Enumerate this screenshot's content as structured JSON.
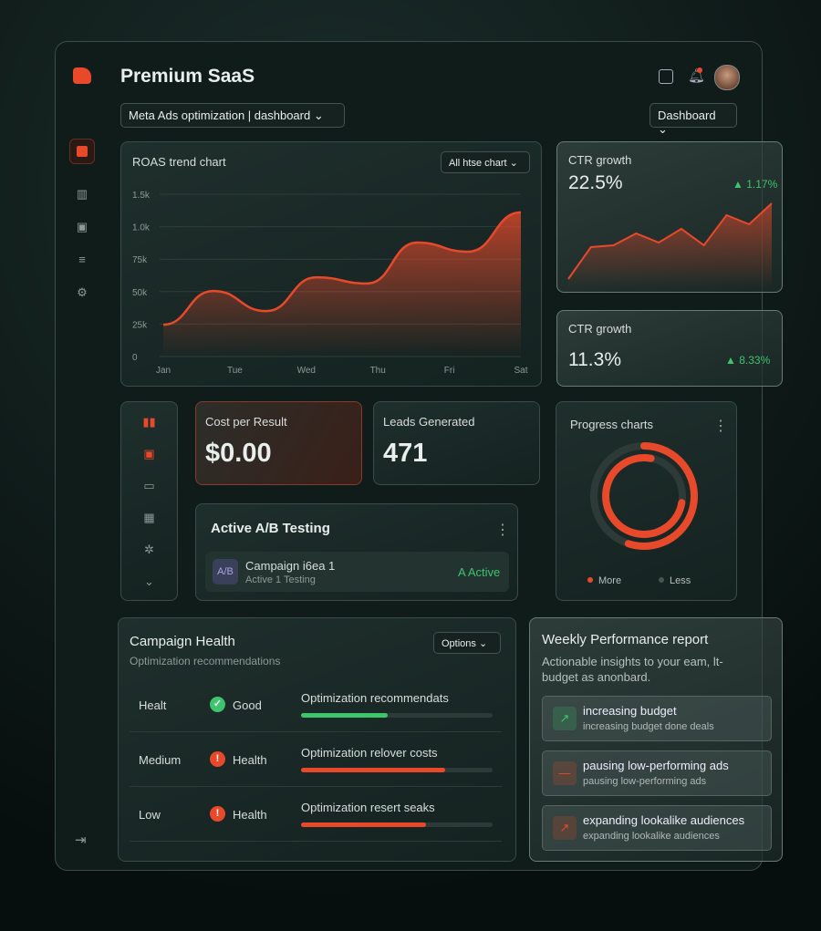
{
  "header": {
    "title": "Premium SaaS",
    "breadcrumb": "Meta Ads optimization | dashboard",
    "view": "Dashboard"
  },
  "roas_chart": {
    "type": "line",
    "title": "ROAS trend chart",
    "filter": "All htse chart",
    "color": "#e8492a",
    "x": [
      0,
      0.7,
      1.44,
      2.14,
      2.85,
      3.55,
      4.26,
      5
    ],
    "values": [
      0.98,
      2.02,
      1.4,
      2.44,
      2.25,
      3.51,
      3.23,
      4.44
    ],
    "xlim": [
      0,
      5
    ],
    "xticks": [
      {
        "value": 0,
        "label": "Jan"
      },
      {
        "value": 1,
        "label": "Tue"
      },
      {
        "value": 2,
        "label": "Wed"
      },
      {
        "value": 3,
        "label": "Thu"
      },
      {
        "value": 4,
        "label": "Fri"
      },
      {
        "value": 5,
        "label": "Sat"
      }
    ],
    "ylim": [
      0,
      5
    ],
    "yticks": [
      0,
      {
        "value": 1,
        "label": "25k"
      },
      {
        "value": 2,
        "label": "50k"
      },
      {
        "value": 3,
        "label": "75k"
      },
      {
        "value": 4,
        "label": "1.0k"
      },
      {
        "value": 5,
        "label": "1.5k"
      }
    ],
    "grid": true
  },
  "ctr_cards": [
    {
      "title": "CTR growth",
      "value": "22.5%",
      "change": "1.17%",
      "values": [
        0,
        35,
        37,
        50,
        40,
        55,
        37,
        70,
        60,
        83
      ]
    },
    {
      "title": "CTR growth",
      "value": "11.3%",
      "change": "8.33%"
    }
  ],
  "cost_per_result": {
    "label": "Cost per Result",
    "value": "$0.00"
  },
  "leads": {
    "label": "Leads Generated",
    "value": "471"
  },
  "ab_testing": {
    "title": "Active A/B Testing",
    "badge": "A/B",
    "name": "Campaign i6ea 1",
    "sub": "Active 1 Testing",
    "status": "A Active"
  },
  "progress": {
    "title": "Progress charts",
    "values": [
      55,
      75
    ],
    "legend": [
      "More",
      "Less"
    ]
  },
  "campaign_health": {
    "title": "Campaign Health",
    "subtitle": "Optimization recommendations",
    "options": "Options",
    "rows": [
      {
        "level": "Healt",
        "status": "Good",
        "label": "Optimization recommendats",
        "progress": 45,
        "color": "#3ec46d"
      },
      {
        "level": "Medium",
        "status": "Health",
        "label": "Optimization relover costs",
        "progress": 75,
        "color": "#e8492a"
      },
      {
        "level": "Low",
        "status": "Health",
        "label": "Optimization resert seaks",
        "progress": 65,
        "color": "#e8492a"
      }
    ]
  },
  "weekly": {
    "title": "Weekly Performance report",
    "description": "Actionable insights to your eam, lt-budget as anonbard.",
    "items": [
      {
        "title": "increasing budget",
        "sub": "increasing budget done deals"
      },
      {
        "title": "pausing low-performing ads",
        "sub": "pausing low-performing ads"
      },
      {
        "title": "expanding lookalike audiences",
        "sub": "expanding lookalike audiences"
      }
    ]
  }
}
